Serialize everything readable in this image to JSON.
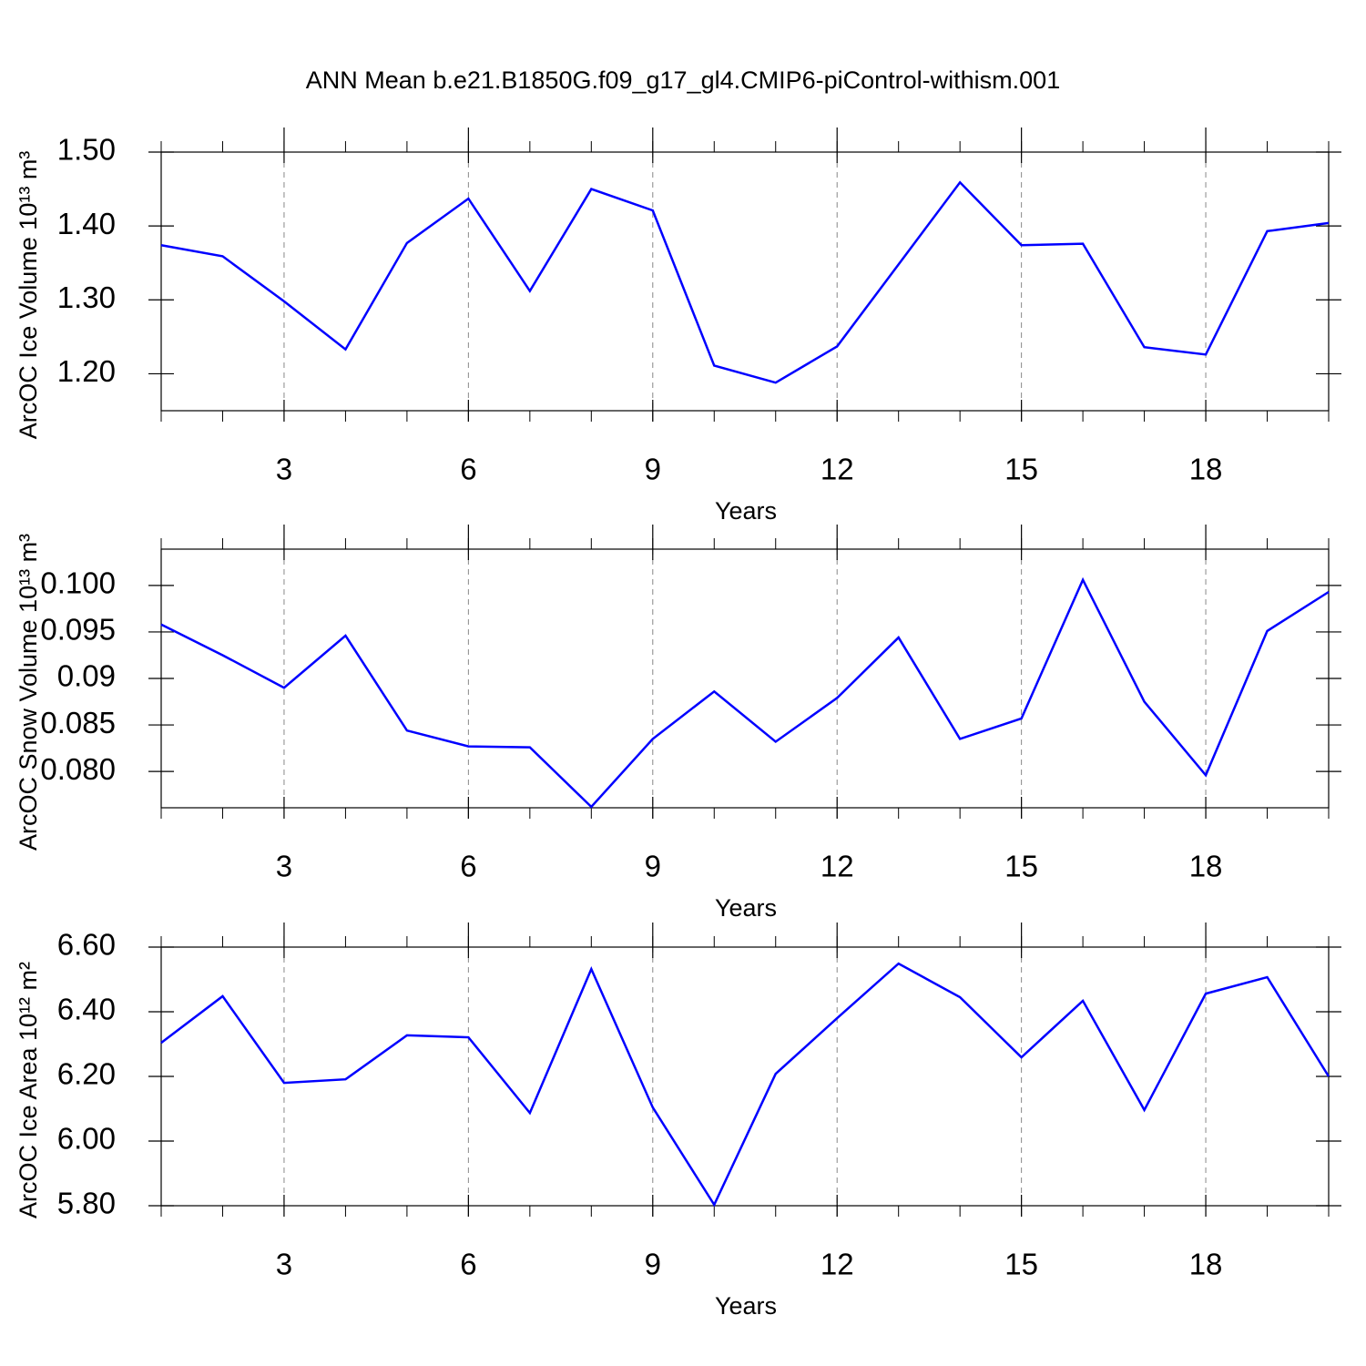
{
  "chart_data": [
    {
      "type": "line",
      "title": "ANN Mean b.e21.B1850G.f09_g17_gl4.CMIP6-piControl-withism.001",
      "xlabel": "Years",
      "ylabel": "ArcOC Ice Volume 10¹³ m³",
      "x": [
        1,
        2,
        3,
        4,
        5,
        6,
        7,
        8,
        9,
        10,
        11,
        12,
        13,
        14,
        15,
        16,
        17,
        18,
        19,
        20
      ],
      "xlim": [
        1,
        20
      ],
      "xticks": [
        3,
        6,
        9,
        12,
        15,
        18
      ],
      "xgrid": true,
      "ylim": [
        1.15,
        1.5
      ],
      "yticks": [
        {
          "value": 1.2,
          "label": "1.20"
        },
        {
          "value": 1.3,
          "label": "1.30"
        },
        {
          "value": 1.4,
          "label": "1.40"
        },
        {
          "value": 1.5,
          "label": "1.50"
        }
      ],
      "series": [
        {
          "color": "#0000ff",
          "values": [
            1.374,
            1.359,
            1.298,
            1.233,
            1.377,
            1.437,
            1.312,
            1.45,
            1.421,
            1.211,
            1.188,
            1.237,
            1.348,
            1.459,
            1.374,
            1.376,
            1.236,
            1.226,
            1.393,
            1.404
          ]
        }
      ]
    },
    {
      "type": "line",
      "xlabel": "Years",
      "ylabel": "ArcOC Snow Volume 10¹³ m³",
      "x": [
        1,
        2,
        3,
        4,
        5,
        6,
        7,
        8,
        9,
        10,
        11,
        12,
        13,
        14,
        15,
        16,
        17,
        18,
        19,
        20
      ],
      "xlim": [
        1,
        20
      ],
      "xticks": [
        3,
        6,
        9,
        12,
        15,
        18
      ],
      "xgrid": true,
      "ylim": [
        0.0761,
        0.1039
      ],
      "yticks": [
        {
          "value": 0.08,
          "label": "0.080"
        },
        0.085,
        0.09,
        0.095,
        {
          "value": 0.1,
          "label": "0.100"
        }
      ],
      "series": [
        {
          "color": "#0000ff",
          "values": [
            0.0958,
            0.0925,
            0.089,
            0.0946,
            0.0844,
            0.0827,
            0.0826,
            0.0762,
            0.0835,
            0.0886,
            0.0832,
            0.0879,
            0.0944,
            0.0835,
            0.0857,
            0.1006,
            0.0875,
            0.0796,
            0.0951,
            0.0993
          ]
        }
      ]
    },
    {
      "type": "line",
      "xlabel": "Years",
      "ylabel": "ArcOC Ice Area 10¹² m²",
      "x": [
        1,
        2,
        3,
        4,
        5,
        6,
        7,
        8,
        9,
        10,
        11,
        12,
        13,
        14,
        15,
        16,
        17,
        18,
        19,
        20
      ],
      "xlim": [
        1,
        20
      ],
      "xticks": [
        3,
        6,
        9,
        12,
        15,
        18
      ],
      "xgrid": true,
      "ylim": [
        5.8,
        6.6
      ],
      "yticks": [
        {
          "value": 5.8,
          "label": "5.80"
        },
        {
          "value": 6.0,
          "label": "6.00"
        },
        {
          "value": 6.2,
          "label": "6.20"
        },
        {
          "value": 6.4,
          "label": "6.40"
        },
        {
          "value": 6.6,
          "label": "6.60"
        }
      ],
      "series": [
        {
          "color": "#0000ff",
          "values": [
            6.304,
            6.448,
            6.18,
            6.191,
            6.327,
            6.321,
            6.087,
            6.532,
            6.104,
            5.803,
            6.208,
            6.38,
            6.549,
            6.445,
            6.259,
            6.434,
            6.096,
            6.456,
            6.507,
            6.2
          ]
        }
      ]
    }
  ]
}
